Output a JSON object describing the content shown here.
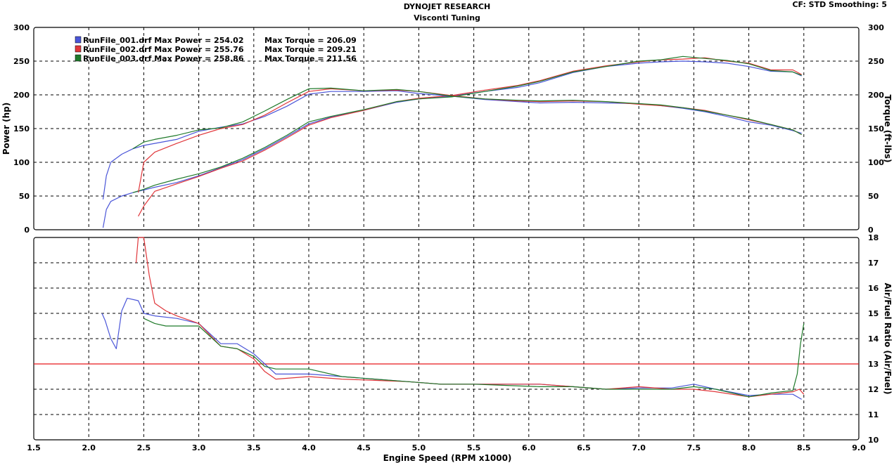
{
  "header": {
    "title": "DYNOJET RESEARCH",
    "subtitle": "Visconti Tuning",
    "cf_info": "CF: STD  Smoothing: 5"
  },
  "colors": {
    "run1": "#4a55d8",
    "run2": "#e0363a",
    "run3": "#1f7a2a",
    "reference_line": "#e8171c",
    "grid": "#000000",
    "background": "#ffffff"
  },
  "chart_data": [
    {
      "type": "line",
      "name": "power-torque",
      "xlabel": "Engine Speed (RPM x1000)",
      "ylabel": "Power (hp)",
      "y2label": "Torque (ft-lbs)",
      "xlim": [
        1.5,
        9.0
      ],
      "ylim": [
        0,
        300
      ],
      "y2lim": [
        0,
        300
      ],
      "grid": true,
      "legend_position": "top-left",
      "legend": [
        {
          "label": "RunFile_001.drf Max Power = 254.02",
          "torque": "Max Torque = 206.09",
          "color": "run1"
        },
        {
          "label": "RunFile_002.drf Max Power = 255.76",
          "torque": "Max Torque = 209.21",
          "color": "run2"
        },
        {
          "label": "RunFile_003.drf Max Power = 258.86",
          "torque": "Max Torque = 211.56",
          "color": "run3"
        }
      ],
      "series": [
        {
          "run": 1,
          "kind": "power",
          "color": "run1",
          "x": [
            2.13,
            2.16,
            2.2,
            2.3,
            2.4,
            2.5,
            2.6,
            2.8,
            3.0,
            3.2,
            3.4,
            3.6,
            3.8,
            4.0,
            4.2,
            4.5,
            4.8,
            5.0,
            5.3,
            5.6,
            5.9,
            6.1,
            6.4,
            6.7,
            7.0,
            7.2,
            7.4,
            7.6,
            7.8,
            8.0,
            8.2,
            8.4,
            8.48
          ],
          "y": [
            3,
            30,
            42,
            50,
            55,
            59,
            63,
            70,
            80,
            92,
            104,
            120,
            138,
            157,
            167,
            177,
            189,
            194,
            198,
            205,
            211,
            218,
            233,
            242,
            247,
            249,
            250,
            249,
            247,
            242,
            235,
            234,
            228
          ]
        },
        {
          "run": 2,
          "kind": "power",
          "color": "run2",
          "x": [
            2.45,
            2.5,
            2.6,
            2.8,
            3.0,
            3.2,
            3.4,
            3.6,
            3.8,
            4.0,
            4.2,
            4.5,
            4.8,
            5.0,
            5.3,
            5.6,
            5.9,
            6.1,
            6.4,
            6.7,
            7.0,
            7.2,
            7.4,
            7.6,
            7.8,
            8.0,
            8.2,
            8.4,
            8.48
          ],
          "y": [
            20,
            35,
            57,
            68,
            79,
            91,
            102,
            118,
            136,
            155,
            166,
            177,
            190,
            195,
            199,
            207,
            214,
            221,
            235,
            243,
            249,
            252,
            253,
            255,
            250,
            247,
            237,
            237,
            230
          ]
        },
        {
          "run": 3,
          "kind": "power",
          "color": "run3",
          "x": [
            2.4,
            2.5,
            2.6,
            2.8,
            3.0,
            3.2,
            3.4,
            3.6,
            3.8,
            4.0,
            4.2,
            4.5,
            4.8,
            5.0,
            5.3,
            5.6,
            5.9,
            6.1,
            6.4,
            6.7,
            7.0,
            7.2,
            7.4,
            7.6,
            7.8,
            8.0,
            8.2,
            8.4,
            8.48
          ],
          "y": [
            55,
            60,
            66,
            75,
            83,
            93,
            106,
            122,
            140,
            160,
            168,
            178,
            190,
            194,
            197,
            205,
            213,
            220,
            234,
            242,
            250,
            252,
            257,
            254,
            251,
            246,
            236,
            234,
            229
          ]
        },
        {
          "run": 1,
          "kind": "torque",
          "color": "run1",
          "x": [
            2.13,
            2.16,
            2.2,
            2.3,
            2.4,
            2.5,
            2.6,
            2.8,
            3.0,
            3.2,
            3.4,
            3.6,
            3.8,
            4.0,
            4.2,
            4.5,
            4.8,
            5.0,
            5.3,
            5.6,
            5.9,
            6.1,
            6.4,
            6.7,
            7.0,
            7.2,
            7.4,
            7.6,
            7.8,
            8.0,
            8.2,
            8.4,
            8.48
          ],
          "y": [
            45,
            80,
            100,
            112,
            120,
            125,
            128,
            134,
            146,
            152,
            157,
            168,
            183,
            201,
            205,
            205,
            206,
            202,
            198,
            193,
            190,
            188,
            189,
            188,
            187,
            184,
            180,
            175,
            168,
            160,
            155,
            147,
            143
          ]
        },
        {
          "run": 2,
          "kind": "torque",
          "color": "run2",
          "x": [
            2.45,
            2.5,
            2.6,
            2.8,
            3.0,
            3.2,
            3.4,
            3.6,
            3.8,
            4.0,
            4.2,
            4.5,
            4.8,
            5.0,
            5.3,
            5.6,
            5.9,
            6.1,
            6.4,
            6.7,
            7.0,
            7.2,
            7.4,
            7.6,
            7.8,
            8.0,
            8.2,
            8.4,
            8.48
          ],
          "y": [
            55,
            100,
            115,
            128,
            140,
            150,
            156,
            170,
            188,
            205,
            209,
            206,
            207,
            205,
            199,
            194,
            191,
            190,
            191,
            190,
            186,
            184,
            181,
            177,
            170,
            163,
            156,
            148,
            141
          ]
        },
        {
          "run": 3,
          "kind": "torque",
          "color": "run3",
          "x": [
            2.4,
            2.5,
            2.6,
            2.8,
            3.0,
            3.2,
            3.4,
            3.6,
            3.8,
            4.0,
            4.2,
            4.5,
            4.8,
            5.0,
            5.3,
            5.6,
            5.9,
            6.1,
            6.4,
            6.7,
            7.0,
            7.2,
            7.4,
            7.6,
            7.8,
            8.0,
            8.2,
            8.4,
            8.48
          ],
          "y": [
            120,
            130,
            134,
            140,
            148,
            151,
            160,
            176,
            193,
            209,
            210,
            206,
            208,
            205,
            198,
            194,
            192,
            191,
            192,
            190,
            187,
            185,
            181,
            176,
            170,
            164,
            156,
            148,
            141
          ]
        }
      ],
      "xticks": [
        "1.5",
        "2.0",
        "2.5",
        "3.0",
        "3.5",
        "4.0",
        "4.5",
        "5.0",
        "5.5",
        "6.0",
        "6.5",
        "7.0",
        "7.5",
        "8.0",
        "8.5",
        "9.0"
      ],
      "yticks": [
        "0",
        "50",
        "100",
        "150",
        "200",
        "250",
        "300"
      ]
    },
    {
      "type": "line",
      "name": "air-fuel",
      "xlabel": "Engine Speed (RPM x1000)",
      "ylabel": "Air/Fuel Ratio (Air/Fuel)",
      "xlim": [
        1.5,
        9.0
      ],
      "ylim": [
        10,
        18
      ],
      "grid": true,
      "reference_line": 13,
      "series": [
        {
          "run": 1,
          "color": "run1",
          "x": [
            2.12,
            2.15,
            2.2,
            2.25,
            2.3,
            2.35,
            2.45,
            2.5,
            2.6,
            2.8,
            3.0,
            3.2,
            3.35,
            3.5,
            3.6,
            3.7,
            4.0,
            4.3,
            4.6,
            4.9,
            5.2,
            5.5,
            5.8,
            6.1,
            6.4,
            6.7,
            7.0,
            7.3,
            7.5,
            7.7,
            8.0,
            8.2,
            8.4,
            8.48
          ],
          "y": [
            15.0,
            14.7,
            14.0,
            13.6,
            15.1,
            15.6,
            15.5,
            15.0,
            14.9,
            14.8,
            14.6,
            13.8,
            13.8,
            13.4,
            13.0,
            12.6,
            12.6,
            12.5,
            12.4,
            12.3,
            12.2,
            12.2,
            12.2,
            12.2,
            12.1,
            12.0,
            12.05,
            12.05,
            12.2,
            12.0,
            11.75,
            11.8,
            11.8,
            11.6
          ]
        },
        {
          "run": 2,
          "color": "run2",
          "x": [
            2.43,
            2.45,
            2.5,
            2.55,
            2.6,
            2.7,
            2.8,
            3.0,
            3.2,
            3.35,
            3.5,
            3.6,
            3.7,
            4.0,
            4.3,
            4.6,
            4.9,
            5.2,
            5.5,
            5.8,
            6.1,
            6.4,
            6.7,
            7.0,
            7.3,
            7.5,
            7.7,
            8.0,
            8.2,
            8.4,
            8.46,
            8.5
          ],
          "y": [
            17.0,
            18.0,
            18.0,
            16.5,
            15.4,
            15.1,
            14.9,
            14.6,
            13.7,
            13.6,
            13.2,
            12.7,
            12.4,
            12.5,
            12.4,
            12.35,
            12.3,
            12.2,
            12.2,
            12.2,
            12.2,
            12.1,
            12.0,
            12.1,
            12.0,
            12.0,
            11.9,
            11.7,
            11.8,
            11.9,
            12.0,
            11.8
          ]
        },
        {
          "run": 3,
          "color": "run3",
          "x": [
            2.5,
            2.6,
            2.7,
            2.8,
            3.0,
            3.2,
            3.35,
            3.5,
            3.6,
            3.7,
            4.0,
            4.3,
            4.6,
            4.9,
            5.2,
            5.5,
            5.8,
            6.1,
            6.4,
            6.7,
            7.0,
            7.3,
            7.5,
            7.7,
            8.0,
            8.2,
            8.4,
            8.44,
            8.47,
            8.5
          ],
          "y": [
            14.8,
            14.6,
            14.5,
            14.5,
            14.5,
            13.7,
            13.6,
            13.3,
            12.9,
            12.8,
            12.8,
            12.5,
            12.4,
            12.3,
            12.2,
            12.2,
            12.15,
            12.1,
            12.1,
            12.0,
            12.0,
            12.0,
            12.1,
            12.0,
            11.7,
            11.85,
            11.95,
            12.6,
            13.8,
            14.6
          ]
        }
      ],
      "xticks": [
        "1.5",
        "2.0",
        "2.5",
        "3.0",
        "3.5",
        "4.0",
        "4.5",
        "5.0",
        "5.5",
        "6.0",
        "6.5",
        "7.0",
        "7.5",
        "8.0",
        "8.5",
        "9.0"
      ],
      "yticks": [
        "10",
        "11",
        "12",
        "13",
        "14",
        "15",
        "16",
        "17",
        "18"
      ]
    }
  ]
}
